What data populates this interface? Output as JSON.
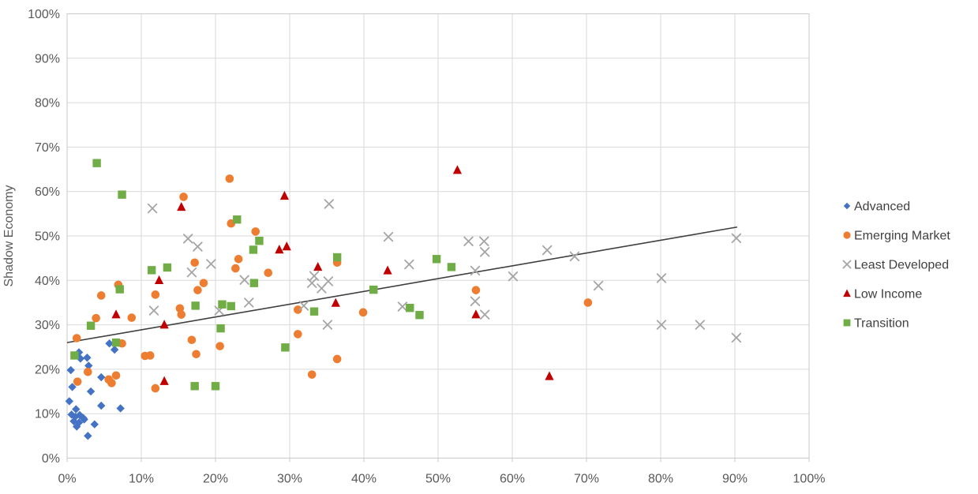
{
  "chart_data": {
    "type": "scatter",
    "title": "",
    "xlabel": "",
    "ylabel": "Shadow Economy",
    "xlim": [
      0,
      100
    ],
    "ylim": [
      0,
      100
    ],
    "x_tick_labels": [
      "0%",
      "10%",
      "20%",
      "30%",
      "40%",
      "50%",
      "60%",
      "70%",
      "80%",
      "90%",
      "100%"
    ],
    "y_tick_labels": [
      "0%",
      "10%",
      "20%",
      "30%",
      "40%",
      "50%",
      "60%",
      "70%",
      "80%",
      "90%",
      "100%"
    ],
    "grid": true,
    "legend_position": "right",
    "axis_text_color": "#595959",
    "gridline_color": "#d9d9d9",
    "plot_border_color": "#c9c9c9",
    "legend_text_color": "#404040",
    "trendline": {
      "x1": 0,
      "y1": 26.0,
      "x2": 90.3,
      "y2": 52.0,
      "color": "#3f3f3f"
    },
    "series": [
      {
        "name": "Advanced",
        "marker": "diamond",
        "color": "#4472C4",
        "points": [
          [
            0.3,
            12.8
          ],
          [
            0.5,
            19.8
          ],
          [
            0.7,
            16.0
          ],
          [
            1.2,
            11.0
          ],
          [
            1.6,
            23.8
          ],
          [
            1.8,
            22.4
          ],
          [
            2.7,
            22.6
          ],
          [
            2.9,
            20.8
          ],
          [
            3.2,
            15.0
          ],
          [
            4.6,
            18.2
          ],
          [
            4.6,
            11.8
          ],
          [
            7.2,
            11.2
          ],
          [
            5.7,
            25.8
          ],
          [
            6.4,
            24.4
          ],
          [
            0.6,
            9.8
          ],
          [
            1.1,
            9.3
          ],
          [
            1.7,
            9.7
          ],
          [
            2.2,
            9.0
          ],
          [
            0.9,
            8.3
          ],
          [
            1.6,
            8.0
          ],
          [
            2.3,
            8.7
          ],
          [
            3.7,
            7.6
          ],
          [
            2.8,
            5.0
          ],
          [
            1.3,
            7.1
          ]
        ]
      },
      {
        "name": "Emerging Market",
        "marker": "circle",
        "color": "#ED7D31",
        "points": [
          [
            1.3,
            27.0
          ],
          [
            1.4,
            17.2
          ],
          [
            2.8,
            19.4
          ],
          [
            3.9,
            31.5
          ],
          [
            4.6,
            36.6
          ],
          [
            5.6,
            17.7
          ],
          [
            6.0,
            16.9
          ],
          [
            6.6,
            18.6
          ],
          [
            6.9,
            39.0
          ],
          [
            7.4,
            25.8
          ],
          [
            8.7,
            31.6
          ],
          [
            10.5,
            23.0
          ],
          [
            11.2,
            23.1
          ],
          [
            11.9,
            15.7
          ],
          [
            11.9,
            36.8
          ],
          [
            15.2,
            33.7
          ],
          [
            15.4,
            32.3
          ],
          [
            15.7,
            58.8
          ],
          [
            16.8,
            26.6
          ],
          [
            17.2,
            44.0
          ],
          [
            17.4,
            23.4
          ],
          [
            17.6,
            37.8
          ],
          [
            18.4,
            39.4
          ],
          [
            20.6,
            25.2
          ],
          [
            21.9,
            62.9
          ],
          [
            22.1,
            52.8
          ],
          [
            22.7,
            42.7
          ],
          [
            23.1,
            44.8
          ],
          [
            25.4,
            51.0
          ],
          [
            27.1,
            41.7
          ],
          [
            31.1,
            33.4
          ],
          [
            31.1,
            27.9
          ],
          [
            33.0,
            18.8
          ],
          [
            36.4,
            22.3
          ],
          [
            36.4,
            44.0
          ],
          [
            39.9,
            32.8
          ],
          [
            55.1,
            37.8
          ],
          [
            70.2,
            35.0
          ]
        ]
      },
      {
        "name": "Least Developed",
        "marker": "x",
        "color": "#A5A5A5",
        "points": [
          [
            11.5,
            56.2
          ],
          [
            11.7,
            33.2
          ],
          [
            16.3,
            49.4
          ],
          [
            16.8,
            41.8
          ],
          [
            17.6,
            47.6
          ],
          [
            19.4,
            43.7
          ],
          [
            20.5,
            33.2
          ],
          [
            23.9,
            40.1
          ],
          [
            24.5,
            35.0
          ],
          [
            31.9,
            34.3
          ],
          [
            33.3,
            41.0
          ],
          [
            33.0,
            39.4
          ],
          [
            35.2,
            39.8
          ],
          [
            34.3,
            38.2
          ],
          [
            35.1,
            30.0
          ],
          [
            35.3,
            57.2
          ],
          [
            43.3,
            49.8
          ],
          [
            45.2,
            34.1
          ],
          [
            46.1,
            43.6
          ],
          [
            54.1,
            48.8
          ],
          [
            56.2,
            48.8
          ],
          [
            56.3,
            46.4
          ],
          [
            55.0,
            42.2
          ],
          [
            55.0,
            35.3
          ],
          [
            56.3,
            32.3
          ],
          [
            60.1,
            40.9
          ],
          [
            64.7,
            46.8
          ],
          [
            68.4,
            45.4
          ],
          [
            71.6,
            38.8
          ],
          [
            80.1,
            40.5
          ],
          [
            80.1,
            30.0
          ],
          [
            85.3,
            30.0
          ],
          [
            90.2,
            49.5
          ],
          [
            90.2,
            27.1
          ]
        ]
      },
      {
        "name": "Low Income",
        "marker": "triangle",
        "color": "#C00000",
        "points": [
          [
            6.6,
            32.3
          ],
          [
            12.4,
            40.0
          ],
          [
            13.1,
            30.0
          ],
          [
            13.1,
            17.3
          ],
          [
            15.4,
            56.5
          ],
          [
            28.6,
            46.9
          ],
          [
            29.6,
            47.6
          ],
          [
            29.3,
            59.0
          ],
          [
            33.8,
            43.0
          ],
          [
            36.2,
            34.9
          ],
          [
            43.2,
            42.2
          ],
          [
            52.6,
            64.8
          ],
          [
            55.1,
            32.3
          ],
          [
            65.0,
            18.4
          ]
        ]
      },
      {
        "name": "Transition",
        "marker": "square",
        "color": "#70AD47",
        "points": [
          [
            1.0,
            23.1
          ],
          [
            3.2,
            29.8
          ],
          [
            4.0,
            66.4
          ],
          [
            6.6,
            26.0
          ],
          [
            7.1,
            38.0
          ],
          [
            7.4,
            59.3
          ],
          [
            11.4,
            42.3
          ],
          [
            13.5,
            42.9
          ],
          [
            17.2,
            16.2
          ],
          [
            17.3,
            34.3
          ],
          [
            20.0,
            16.2
          ],
          [
            20.7,
            29.2
          ],
          [
            20.9,
            34.6
          ],
          [
            22.1,
            34.2
          ],
          [
            22.9,
            53.7
          ],
          [
            25.1,
            46.9
          ],
          [
            25.2,
            39.4
          ],
          [
            25.9,
            48.9
          ],
          [
            29.4,
            24.9
          ],
          [
            33.3,
            33.0
          ],
          [
            36.4,
            45.2
          ],
          [
            41.3,
            37.9
          ],
          [
            46.2,
            33.8
          ],
          [
            47.5,
            32.2
          ],
          [
            49.8,
            44.8
          ],
          [
            51.8,
            43.0
          ]
        ]
      }
    ],
    "legend": [
      "Advanced",
      "Emerging Market",
      "Least Developed",
      "Low Income",
      "Transition"
    ]
  }
}
